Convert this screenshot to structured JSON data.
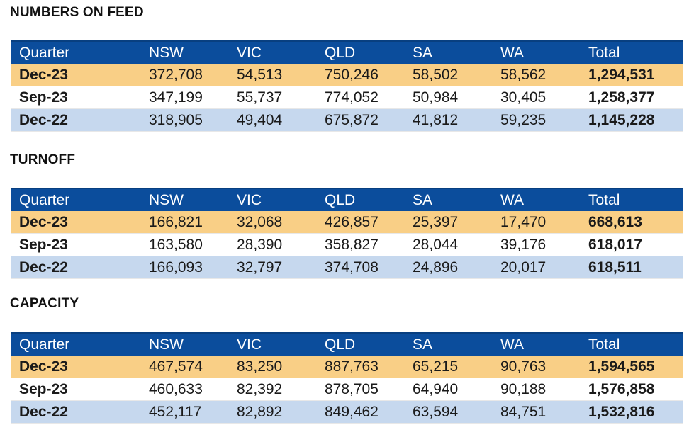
{
  "sections": [
    {
      "title": "NUMBERS ON FEED",
      "headers": [
        "Quarter",
        "NSW",
        "VIC",
        "QLD",
        "SA",
        "WA",
        "Total"
      ],
      "rows": [
        [
          "Dec-23",
          "372,708",
          "54,513",
          "750,246",
          "58,502",
          "58,562",
          "1,294,531"
        ],
        [
          "Sep-23",
          "347,199",
          "55,737",
          "774,052",
          "50,984",
          "30,405",
          "1,258,377"
        ],
        [
          "Dec-22",
          "318,905",
          "49,404",
          "675,872",
          "41,812",
          "59,235",
          "1,145,228"
        ]
      ]
    },
    {
      "title": "TURNOFF",
      "headers": [
        "Quarter",
        "NSW",
        "VIC",
        "QLD",
        "SA",
        "WA",
        "Total"
      ],
      "rows": [
        [
          "Dec-23",
          "166,821",
          "32,068",
          "426,857",
          "25,397",
          "17,470",
          "668,613"
        ],
        [
          "Sep-23",
          "163,580",
          "28,390",
          "358,827",
          "28,044",
          "39,176",
          "618,017"
        ],
        [
          "Dec-22",
          "166,093",
          "32,797",
          "374,708",
          "24,896",
          "20,017",
          "618,511"
        ]
      ]
    },
    {
      "title": "CAPACITY",
      "headers": [
        "Quarter",
        "NSW",
        "VIC",
        "QLD",
        "SA",
        "WA",
        "Total"
      ],
      "rows": [
        [
          "Dec-23",
          "467,574",
          "83,250",
          "887,763",
          "65,215",
          "90,763",
          "1,594,565"
        ],
        [
          "Sep-23",
          "460,633",
          "82,392",
          "878,705",
          "64,940",
          "90,188",
          "1,576,858"
        ],
        [
          "Dec-22",
          "452,117",
          "82,892",
          "849,462",
          "63,594",
          "84,751",
          "1,532,816"
        ]
      ]
    }
  ],
  "colors": {
    "header_bg": "#0b4d9c",
    "row_current": "#f9cf86",
    "row_previous": "#ffffff",
    "row_year_ago": "#c6d8ee"
  }
}
